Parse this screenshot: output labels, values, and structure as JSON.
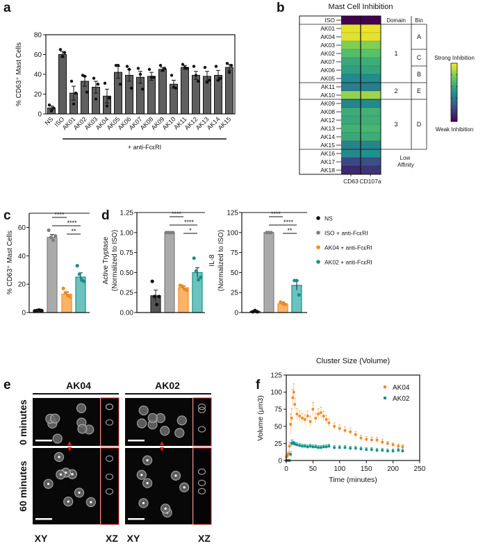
{
  "panel_labels": {
    "a": "a",
    "b": "b",
    "c": "c",
    "d": "d",
    "e": "e",
    "f": "f"
  },
  "chart_data": [
    {
      "id": "a",
      "type": "bar",
      "ylabel": "% CD63⁺ Mast Cells",
      "ylim": [
        0,
        80
      ],
      "yticks": [
        0,
        20,
        40,
        60,
        80
      ],
      "categories": [
        "NS",
        "ISO",
        "AK01",
        "AK02",
        "AK03",
        "AK04",
        "AK05",
        "AK06",
        "AK07",
        "AK08",
        "AK09",
        "AK10",
        "AK11",
        "AK12",
        "AK13",
        "AK14",
        "AK15"
      ],
      "values": [
        6,
        60,
        21,
        33,
        27,
        18,
        42,
        39,
        37,
        38,
        45,
        30,
        47,
        39,
        38,
        39,
        47
      ],
      "errors": [
        2,
        3,
        7,
        5,
        6,
        7,
        6,
        6,
        6,
        4,
        2,
        4,
        2,
        4,
        5,
        5,
        3
      ],
      "points": [
        [
          9,
          3,
          6
        ],
        [
          65,
          58,
          62
        ],
        [
          33,
          10,
          21
        ],
        [
          39,
          38,
          22
        ],
        [
          36,
          15,
          30
        ],
        [
          31,
          8,
          16
        ],
        [
          49,
          49,
          30
        ],
        [
          48,
          45,
          26
        ],
        [
          46,
          40,
          25
        ],
        [
          45,
          37,
          37
        ],
        [
          49,
          44,
          46
        ],
        [
          39,
          27,
          26
        ],
        [
          50,
          47,
          46
        ],
        [
          48,
          39,
          33
        ],
        [
          47,
          32,
          34
        ],
        [
          48,
          34,
          36
        ],
        [
          51,
          42,
          49
        ]
      ],
      "bar_color": "#5f5f5f",
      "bracket_label": "+ anti-FcεRI"
    },
    {
      "id": "b",
      "type": "heatmap",
      "title": "Mast Cell Inhibition",
      "columns": [
        "CD63",
        "CD107a"
      ],
      "rows": [
        "ISO",
        "AK01",
        "AK04",
        "AK03",
        "AK02",
        "AK07",
        "AK06",
        "AK05",
        "AK11",
        "AK10",
        "AK09",
        "AK08",
        "AK12",
        "AK13",
        "AK14",
        "AK15",
        "AK16",
        "AK17",
        "AK18"
      ],
      "values": [
        [
          0.0,
          0.0
        ],
        [
          0.96,
          0.97
        ],
        [
          0.95,
          0.96
        ],
        [
          0.8,
          0.8
        ],
        [
          0.7,
          0.72
        ],
        [
          0.6,
          0.62
        ],
        [
          0.56,
          0.58
        ],
        [
          0.47,
          0.48
        ],
        [
          0.42,
          0.43
        ],
        [
          0.83,
          0.85
        ],
        [
          0.45,
          0.47
        ],
        [
          0.62,
          0.64
        ],
        [
          0.6,
          0.63
        ],
        [
          0.64,
          0.66
        ],
        [
          0.6,
          0.62
        ],
        [
          0.44,
          0.45
        ],
        [
          0.47,
          0.5
        ],
        [
          0.22,
          0.24
        ],
        [
          0.12,
          0.16
        ]
      ],
      "domain_header": "Domain",
      "bin_header": "Bin",
      "domains": [
        {
          "label": "1",
          "rows": [
            1,
            7
          ]
        },
        {
          "label": "2",
          "rows": [
            8,
            9
          ]
        },
        {
          "label": "3",
          "rows": [
            10,
            15
          ]
        },
        {
          "label": "Low Affinity",
          "rows": [
            16,
            18
          ]
        }
      ],
      "bins": [
        {
          "label": "A",
          "rows": [
            1,
            3
          ]
        },
        {
          "label": "C",
          "rows": [
            4,
            5
          ]
        },
        {
          "label": "B",
          "rows": [
            6,
            7
          ]
        },
        {
          "label": "E",
          "rows": [
            8,
            9
          ]
        },
        {
          "label": "D",
          "rows": [
            10,
            15
          ]
        }
      ],
      "colorbar": {
        "top_label": "Strong Inhibition",
        "bottom_label": "Weak Inhibition",
        "colormap": "viridis"
      }
    },
    {
      "id": "c",
      "type": "bar",
      "ylabel": "% CD63⁺ Mast Cells",
      "ylim": [
        0,
        70
      ],
      "yticks": [
        0,
        20,
        40,
        60
      ],
      "groups": [
        "NS",
        "ISO + anti-FcεRI",
        "AK04 + anti-FcεRI",
        "AK02 + anti-FcεRI"
      ],
      "values": [
        1.5,
        53,
        13,
        25
      ],
      "errors": [
        0.3,
        2,
        1.5,
        3
      ],
      "points": [
        [
          1.2,
          1.5,
          1.8,
          1.4
        ],
        [
          58,
          53,
          51,
          54
        ],
        [
          17,
          14,
          12,
          11
        ],
        [
          33,
          27,
          23,
          22
        ]
      ],
      "significance": [
        {
          "pair": [
            1,
            2
          ],
          "label": "****"
        },
        {
          "pair": [
            1,
            3
          ],
          "label": "****"
        },
        {
          "pair": [
            2,
            3
          ],
          "label": "**"
        }
      ]
    },
    {
      "id": "d1",
      "type": "bar",
      "ylabel": "Active Tryptase",
      "ylabel2": "(Normalized to ISO)",
      "ylim": [
        0,
        1.25
      ],
      "yticks": [
        "0.00",
        "0.25",
        "0.50",
        "0.75",
        "1.00",
        "1.25"
      ],
      "groups": [
        "NS",
        "ISO + anti-FcεRI",
        "AK04 + anti-FcεRI",
        "AK02 + anti-FcεRI"
      ],
      "values": [
        0.21,
        1.0,
        0.31,
        0.5
      ],
      "errors": [
        0.07,
        0,
        0.02,
        0.06
      ],
      "points": [
        [
          0.39,
          0.2,
          0.1,
          0.2
        ],
        [
          1,
          1,
          1,
          1
        ],
        [
          0.34,
          0.33,
          0.29,
          0.28
        ],
        [
          0.68,
          0.52,
          0.41,
          0.44
        ]
      ],
      "significance": [
        {
          "pair": [
            1,
            2
          ],
          "label": "****"
        },
        {
          "pair": [
            1,
            3
          ],
          "label": "****"
        },
        {
          "pair": [
            2,
            3
          ],
          "label": "*"
        }
      ]
    },
    {
      "id": "d2",
      "type": "bar",
      "ylabel": "IL-8",
      "ylabel2": "(Normalized to ISO)",
      "ylim": [
        0,
        125
      ],
      "yticks": [
        "0",
        "25",
        "50",
        "75",
        "100",
        "125"
      ],
      "groups": [
        "NS",
        "ISO + anti-FcεRI",
        "AK04 + anti-FcεRI",
        "AK02 + anti-FcεRI"
      ],
      "values": [
        1.5,
        100,
        11,
        34
      ],
      "errors": [
        0.5,
        0,
        2,
        6
      ],
      "points": [
        [
          1,
          2.5,
          1
        ],
        [
          100,
          100,
          100
        ],
        [
          13,
          11,
          10
        ],
        [
          40,
          40,
          22
        ]
      ],
      "significance": [
        {
          "pair": [
            1,
            2
          ],
          "label": "****"
        },
        {
          "pair": [
            1,
            3
          ],
          "label": "****"
        },
        {
          "pair": [
            2,
            3
          ],
          "label": "**"
        }
      ]
    },
    {
      "id": "f",
      "type": "scatter",
      "title": "Cluster Size (Volume)",
      "xlabel": "Time (minutes)",
      "ylabel": "Volume (µm3)",
      "xlim": [
        0,
        250
      ],
      "ylim": [
        0,
        125
      ],
      "xticks": [
        0,
        50,
        100,
        150,
        200,
        250
      ],
      "yticks": [
        0,
        25,
        50,
        75,
        100,
        125
      ],
      "legend_position": "top-right",
      "x": [
        0,
        2,
        4,
        6,
        8,
        10,
        12,
        14,
        16,
        20,
        25,
        30,
        35,
        40,
        45,
        50,
        55,
        60,
        65,
        70,
        75,
        80,
        90,
        100,
        110,
        120,
        130,
        140,
        150,
        160,
        170,
        180,
        190,
        200,
        210,
        218
      ],
      "series": [
        {
          "name": "AK04",
          "color": "#f28a1e",
          "values": [
            5,
            7,
            10,
            21,
            53,
            62,
            92,
            100,
            82,
            68,
            65,
            62,
            60,
            65,
            57,
            75,
            62,
            68,
            70,
            65,
            60,
            55,
            50,
            47,
            44,
            42,
            38,
            33,
            31,
            30,
            30,
            27,
            25,
            23,
            21,
            20
          ],
          "errors": [
            3,
            3,
            4,
            6,
            15,
            14,
            12,
            12,
            9,
            8,
            8,
            7,
            7,
            7,
            8,
            10,
            7,
            8,
            8,
            7,
            6,
            6,
            5,
            5,
            5,
            5,
            4,
            4,
            4,
            4,
            4,
            4,
            3,
            3,
            3,
            3
          ]
        },
        {
          "name": "AK02",
          "color": "#14918a",
          "values": [
            0,
            0,
            0,
            0,
            9,
            25,
            26,
            25,
            24,
            23,
            22,
            21,
            21,
            20,
            21,
            20,
            20,
            19,
            19,
            20,
            20,
            21,
            19,
            19,
            19,
            18,
            18,
            17,
            16,
            16,
            15,
            15,
            14,
            14,
            15,
            14
          ],
          "errors": [
            1,
            1,
            1,
            1,
            4,
            5,
            4,
            3,
            3,
            3,
            3,
            3,
            3,
            3,
            3,
            3,
            3,
            3,
            3,
            3,
            3,
            3,
            3,
            3,
            3,
            3,
            3,
            3,
            3,
            3,
            3,
            3,
            3,
            3,
            3,
            3
          ]
        }
      ]
    }
  ],
  "legend_cd": [
    {
      "label": "NS",
      "color": "#111111"
    },
    {
      "label": "ISO + anti-FcεRI",
      "color": "#7f7f7f"
    },
    {
      "label": "AK04 + anti-FcεRI",
      "color": "#f28a1e"
    },
    {
      "label": "AK02 + anti-FcεRI",
      "color": "#14918a"
    }
  ],
  "bar_fills": [
    "#555555",
    "#aaaaaa",
    "#fbb36a",
    "#6cc3bd"
  ],
  "microscopy": {
    "conditions": [
      "AK04",
      "AK02"
    ],
    "timepoints": [
      "0 minutes",
      "60 minutes"
    ],
    "views": [
      "XY",
      "XZ"
    ]
  }
}
